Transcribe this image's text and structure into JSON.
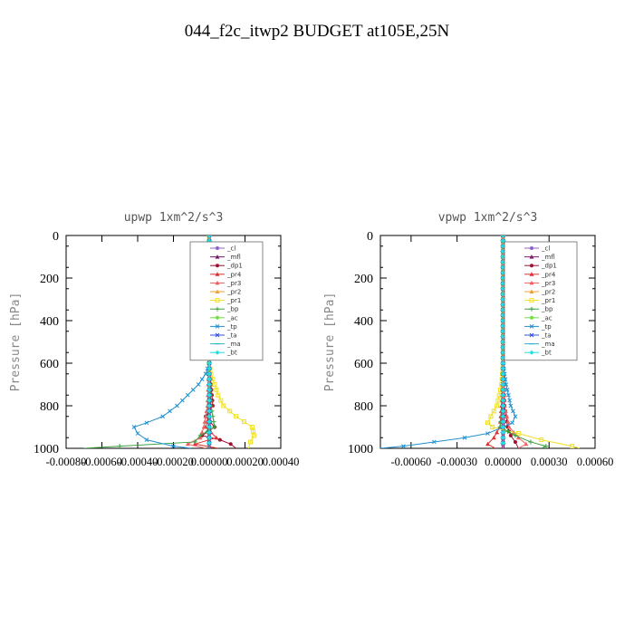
{
  "title": "044_f2c_itwp2  BUDGET at105E,25N",
  "chart_data": [
    {
      "type": "line",
      "title": "upwp   1xm^2/s^3",
      "ylabel": "Pressure [hPa]",
      "xlim": [
        -0.0008,
        0.0004
      ],
      "ylim": [
        1000,
        0
      ],
      "y_inverted": true,
      "xticks": [
        -0.0008,
        -0.0006,
        -0.0004,
        -0.0002,
        0.0,
        0.0002,
        0.0004
      ],
      "xtick_labels": [
        "-0.00080",
        "-0.00060",
        "-0.00040",
        "-0.00020",
        "0.00000",
        "0.00020",
        "0.00040"
      ],
      "yticks": [
        0,
        200,
        400,
        600,
        800,
        1000
      ],
      "ytick_labels": [
        "0",
        "200",
        "400",
        "600",
        "800",
        "1000"
      ],
      "legend_position": "top-right",
      "series": [
        {
          "name": "_cl",
          "color": "#9060c8",
          "y": [
            0,
            600,
            800,
            900,
            950,
            1000
          ],
          "x": [
            0,
            0,
            0,
            0,
            0,
            0
          ]
        },
        {
          "name": "_mfl",
          "color": "#7a1a6a",
          "y": [
            0,
            600,
            800,
            900,
            950,
            1000
          ],
          "x": [
            0,
            0,
            0,
            0,
            0,
            0
          ]
        },
        {
          "name": "_dp1",
          "color": "#a01030",
          "y": [
            0,
            600,
            700,
            800,
            850,
            900,
            940,
            960,
            980,
            1000
          ],
          "x": [
            0,
            0,
            1e-05,
            2e-05,
            -2e-05,
            3e-05,
            -4e-05,
            6e-05,
            0.00012,
            0.00015
          ]
        },
        {
          "name": "_pr4",
          "color": "#e03030",
          "y": [
            0,
            600,
            800,
            900,
            950,
            980,
            1000
          ],
          "x": [
            0,
            0,
            1e-05,
            -2e-05,
            4e-05,
            -8e-05,
            5e-05
          ]
        },
        {
          "name": "_pr3",
          "color": "#f06060",
          "y": [
            0,
            600,
            800,
            900,
            950,
            980,
            1000
          ],
          "x": [
            0,
            0,
            -1e-05,
            -3e-05,
            -5e-05,
            -0.00012,
            -2e-05
          ]
        },
        {
          "name": "_pr2",
          "color": "#f0a030",
          "y": [
            0,
            600,
            800,
            900,
            1000
          ],
          "x": [
            0,
            0,
            0,
            0,
            0
          ]
        },
        {
          "name": "_pr1",
          "color": "#f0e020",
          "y": [
            0,
            600,
            650,
            700,
            750,
            800,
            850,
            900,
            940,
            970,
            1000
          ],
          "x": [
            0,
            0,
            1e-05,
            3e-05,
            5e-05,
            8e-05,
            0.00015,
            0.00024,
            0.00025,
            0.00023,
            0.00022
          ]
        },
        {
          "name": "_bp",
          "color": "#3aa040",
          "y": [
            0,
            600,
            800,
            900,
            940,
            970,
            990,
            1000
          ],
          "x": [
            0,
            0,
            1e-05,
            3e-05,
            -5e-05,
            -8e-05,
            -0.0005,
            -0.0007
          ]
        },
        {
          "name": "_ac",
          "color": "#70e040",
          "y": [
            0,
            600,
            800,
            900,
            1000
          ],
          "x": [
            0,
            0,
            0,
            0,
            0
          ]
        },
        {
          "name": "_tp",
          "color": "#2090d0",
          "y": [
            0,
            600,
            650,
            700,
            750,
            800,
            850,
            880,
            900,
            930,
            960,
            990,
            1000
          ],
          "x": [
            0,
            0,
            -2e-05,
            -6e-05,
            -0.00012,
            -0.00018,
            -0.00026,
            -0.00035,
            -0.00042,
            -0.0004,
            -0.00035,
            -0.0002,
            -0.0001
          ]
        },
        {
          "name": "_ta",
          "color": "#3050e0",
          "y": [
            0,
            600,
            800,
            900,
            1000
          ],
          "x": [
            0,
            0,
            0,
            0,
            0
          ]
        },
        {
          "name": "_ma",
          "color": "#30b0d0",
          "y": [
            0,
            600,
            800,
            900,
            1000
          ],
          "x": [
            0,
            0,
            0,
            0,
            0
          ]
        },
        {
          "name": "_bt",
          "color": "#20e0e0",
          "y": [
            0,
            600,
            800,
            900,
            1000
          ],
          "x": [
            0,
            0,
            0,
            0,
            0
          ]
        }
      ]
    },
    {
      "type": "line",
      "title": "vpwp   1xm^2/s^3",
      "ylabel": "Pressure [hPa]",
      "xlim": [
        -0.0008,
        0.0006
      ],
      "ylim": [
        1000,
        0
      ],
      "y_inverted": true,
      "xticks": [
        -0.0006,
        -0.0003,
        0.0,
        0.0003,
        0.0006
      ],
      "xtick_labels": [
        "-0.00060",
        "-0.00030",
        "0.00000",
        "0.00030",
        "0.00060"
      ],
      "yticks": [
        0,
        200,
        400,
        600,
        800,
        1000
      ],
      "ytick_labels": [
        "0",
        "200",
        "400",
        "600",
        "800",
        "1000"
      ],
      "legend_position": "top-right",
      "series": [
        {
          "name": "_cl",
          "color": "#9060c8",
          "y": [
            0,
            600,
            800,
            900,
            950,
            1000
          ],
          "x": [
            0,
            0,
            0,
            0,
            0,
            0
          ]
        },
        {
          "name": "_mfl",
          "color": "#7a1a6a",
          "y": [
            0,
            600,
            800,
            900,
            950,
            1000
          ],
          "x": [
            0,
            0,
            0,
            0,
            0,
            0
          ]
        },
        {
          "name": "_dp1",
          "color": "#a01030",
          "y": [
            0,
            600,
            800,
            900,
            940,
            970,
            1000
          ],
          "x": [
            0,
            0,
            1e-05,
            3e-05,
            5e-05,
            8e-05,
            0.0001
          ]
        },
        {
          "name": "_pr4",
          "color": "#e03030",
          "y": [
            0,
            600,
            800,
            900,
            950,
            980,
            1000
          ],
          "x": [
            0,
            0,
            -1e-05,
            -2e-05,
            -6e-05,
            -0.0001,
            -5e-05
          ]
        },
        {
          "name": "_pr3",
          "color": "#f06060",
          "y": [
            0,
            600,
            800,
            900,
            950,
            980,
            1000
          ],
          "x": [
            0,
            0,
            1e-05,
            4e-05,
            0.0001,
            0.00015,
            0.0001
          ]
        },
        {
          "name": "_pr2",
          "color": "#f0a030",
          "y": [
            0,
            600,
            800,
            900,
            1000
          ],
          "x": [
            0,
            0,
            0,
            0,
            0
          ]
        },
        {
          "name": "_pr1",
          "color": "#f0e020",
          "y": [
            0,
            600,
            700,
            800,
            850,
            880,
            900,
            930,
            960,
            990,
            1000
          ],
          "x": [
            0,
            0,
            -1e-05,
            -4e-05,
            -8e-05,
            -0.0001,
            -7e-05,
            0.0001,
            0.00025,
            0.00045,
            0.0005
          ]
        },
        {
          "name": "_bp",
          "color": "#3aa040",
          "y": [
            0,
            600,
            800,
            900,
            940,
            970,
            990,
            1000
          ],
          "x": [
            0,
            0,
            0,
            -2e-05,
            8e-05,
            0.00018,
            0.00028,
            0.00025
          ]
        },
        {
          "name": "_ac",
          "color": "#70e040",
          "y": [
            0,
            600,
            800,
            900,
            1000
          ],
          "x": [
            0,
            0,
            0,
            0,
            0
          ]
        },
        {
          "name": "_tp",
          "color": "#2090d0",
          "y": [
            0,
            600,
            700,
            800,
            850,
            880,
            900,
            930,
            950,
            970,
            990,
            1000
          ],
          "x": [
            0,
            0,
            2e-05,
            5e-05,
            8e-05,
            6e-05,
            0.0,
            -0.0001,
            -0.00025,
            -0.00045,
            -0.00065,
            -0.0008
          ]
        },
        {
          "name": "_ta",
          "color": "#3050e0",
          "y": [
            0,
            600,
            800,
            900,
            1000
          ],
          "x": [
            0,
            0,
            0,
            0,
            0
          ]
        },
        {
          "name": "_ma",
          "color": "#30b0d0",
          "y": [
            0,
            600,
            800,
            900,
            1000
          ],
          "x": [
            0,
            0,
            0,
            0,
            0
          ]
        },
        {
          "name": "_bt",
          "color": "#20e0e0",
          "y": [
            0,
            600,
            800,
            900,
            1000
          ],
          "x": [
            0,
            0,
            0,
            0,
            0
          ]
        }
      ]
    }
  ]
}
